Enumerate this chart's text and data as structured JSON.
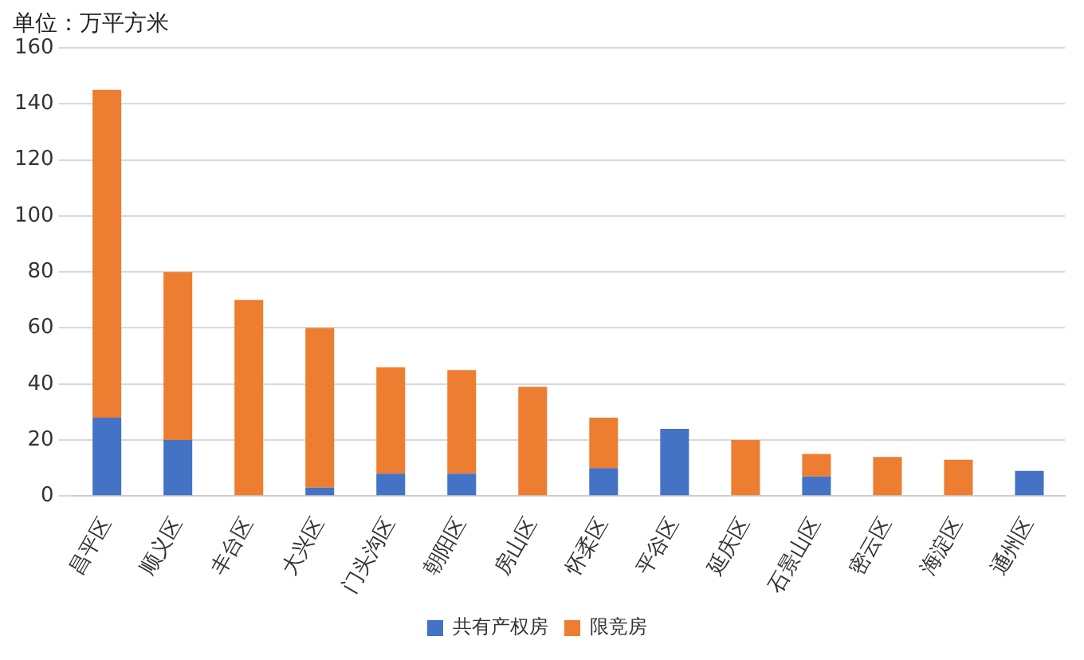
{
  "chart_data": {
    "type": "bar",
    "ylabel": "单位：万平方米",
    "stacked": true,
    "categories": [
      "昌平区",
      "顺义区",
      "丰台区",
      "大兴区",
      "门头沟区",
      "朝阳区",
      "房山区",
      "怀柔区",
      "平谷区",
      "延庆区",
      "石景山区",
      "密云区",
      "海淀区",
      "通州区"
    ],
    "series": [
      {
        "name": "共有产权房",
        "color": "#4472c4",
        "values": [
          28,
          20,
          0,
          3,
          8,
          8,
          0,
          10,
          24,
          0,
          7,
          0,
          0,
          9
        ]
      },
      {
        "name": "限竞房",
        "color": "#ed7d31",
        "values": [
          117,
          60,
          70,
          57,
          38,
          37,
          39,
          18,
          0,
          20,
          8,
          14,
          13,
          0
        ]
      }
    ],
    "ylim": [
      0,
      160
    ],
    "yticks": [
      0,
      20,
      40,
      60,
      80,
      100,
      120,
      140,
      160
    ],
    "grid": "y",
    "legend": "bottom"
  }
}
